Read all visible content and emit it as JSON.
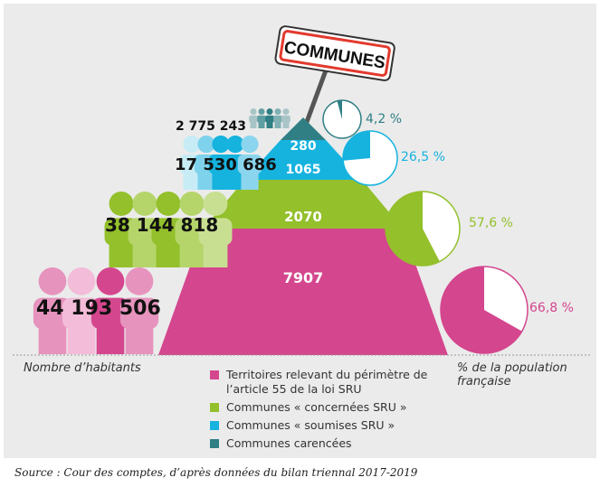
{
  "sign": {
    "label": "COMMUNES"
  },
  "pyramid": {
    "levels": [
      {
        "key": "carencees",
        "count": "280",
        "color": "#2f7f85"
      },
      {
        "key": "soumises",
        "count": "1065",
        "color": "#16b3de"
      },
      {
        "key": "concernees",
        "count": "2070",
        "color": "#93c02b"
      },
      {
        "key": "territoires",
        "count": "7907",
        "color": "#d4468e"
      }
    ]
  },
  "population": {
    "carencees": "2 775 243",
    "soumises": "17 530 686",
    "concernees": "38 144 818",
    "territoires": "44 193 506"
  },
  "percentages": [
    {
      "key": "carencees",
      "label": "4,2 %",
      "value": 4.2,
      "color": "#2f7f85"
    },
    {
      "key": "soumises",
      "label": "26,5 %",
      "value": 26.5,
      "color": "#16b3de"
    },
    {
      "key": "concernees",
      "label": "57,6 %",
      "value": 57.6,
      "color": "#93c02b"
    },
    {
      "key": "territoires",
      "label": "66,8 %",
      "value": 66.8,
      "color": "#d4468e"
    }
  ],
  "axis_labels": {
    "left": "Nombre d’habitants",
    "right": "% de la population française"
  },
  "legend": [
    {
      "label": "Territoires relevant du périmètre de l’article 55 de la loi SRU",
      "color": "#d4468e"
    },
    {
      "label": "Communes « concernées SRU »",
      "color": "#93c02b"
    },
    {
      "label": "Communes « soumises SRU »",
      "color": "#16b3de"
    },
    {
      "label": "Communes carencées",
      "color": "#2f7f85"
    }
  ],
  "source": "Source : Cour des comptes, d’après données du bilan triennal 2017-2019"
}
